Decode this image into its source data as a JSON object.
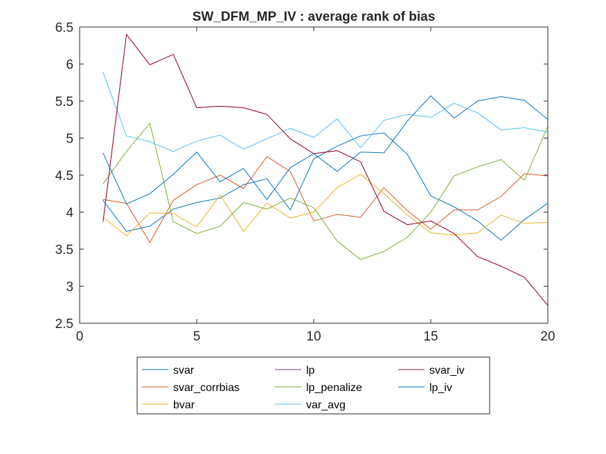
{
  "chart_data": {
    "type": "line",
    "title": "SW_DFM_MP_IV : average rank of bias",
    "xlabel": "",
    "ylabel": "",
    "xlim": [
      0,
      20
    ],
    "ylim": [
      2.5,
      6.5
    ],
    "xticks": [
      "0",
      "5",
      "10",
      "15",
      "20"
    ],
    "yticks": [
      "2.5",
      "3",
      "3.5",
      "4",
      "4.5",
      "5",
      "5.5",
      "6",
      "6.5"
    ],
    "grid": false,
    "legend_position": "bottom-center",
    "x": [
      1,
      2,
      3,
      4,
      5,
      6,
      7,
      8,
      9,
      10,
      11,
      12,
      13,
      14,
      15,
      16,
      17,
      18,
      19,
      20
    ],
    "series": [
      {
        "name": "svar",
        "color": "#0072bd",
        "values": [
          4.16,
          3.74,
          3.81,
          4.04,
          4.13,
          4.19,
          4.37,
          4.45,
          4.03,
          4.72,
          4.89,
          5.03,
          5.07,
          4.78,
          4.22,
          4.07,
          3.88,
          3.62,
          3.9,
          4.12
        ]
      },
      {
        "name": "svar_corrbias",
        "color": "#d95319",
        "values": [
          4.17,
          4.12,
          3.59,
          4.16,
          4.37,
          4.5,
          4.32,
          4.75,
          4.55,
          3.88,
          3.97,
          3.93,
          4.33,
          4.02,
          3.77,
          4.03,
          4.03,
          4.21,
          4.52,
          4.49
        ]
      },
      {
        "name": "bvar",
        "color": "#edb120",
        "values": [
          3.93,
          3.68,
          3.99,
          3.98,
          3.8,
          4.23,
          3.74,
          4.12,
          3.92,
          4.0,
          4.33,
          4.51,
          4.25,
          3.96,
          3.72,
          3.69,
          3.72,
          3.96,
          3.85,
          3.86
        ]
      },
      {
        "name": "lp",
        "color": "#7e2f8e",
        "values": [
          3.87,
          6.4,
          5.99,
          6.13,
          5.41,
          5.43,
          5.41,
          5.32,
          4.99,
          4.79,
          4.83,
          4.68,
          4.01,
          3.83,
          3.88,
          3.71,
          3.4,
          3.27,
          3.12,
          2.74
        ]
      },
      {
        "name": "lp_penalize",
        "color": "#77ac30",
        "values": [
          4.38,
          4.82,
          5.2,
          3.87,
          3.71,
          3.81,
          4.13,
          4.04,
          4.19,
          4.06,
          3.61,
          3.36,
          3.47,
          3.66,
          4.0,
          4.49,
          4.61,
          4.71,
          4.43,
          5.16
        ]
      },
      {
        "name": "var_avg",
        "color": "#4dbeee",
        "values": [
          5.89,
          5.03,
          4.95,
          4.82,
          4.96,
          5.04,
          4.85,
          4.99,
          5.13,
          5.01,
          5.26,
          4.87,
          5.24,
          5.32,
          5.28,
          5.47,
          5.34,
          5.11,
          5.14,
          5.08
        ]
      },
      {
        "name": "svar_iv",
        "color": "#a2142f",
        "values": [
          3.87,
          6.4,
          5.99,
          6.13,
          5.41,
          5.43,
          5.41,
          5.32,
          4.99,
          4.79,
          4.83,
          4.68,
          4.01,
          3.83,
          3.88,
          3.71,
          3.4,
          3.27,
          3.12,
          2.74
        ]
      },
      {
        "name": "lp_iv",
        "color": "#0072bd",
        "values": [
          4.8,
          4.11,
          4.25,
          4.51,
          4.81,
          4.41,
          4.59,
          4.17,
          4.6,
          4.79,
          4.55,
          4.81,
          4.8,
          5.23,
          5.57,
          5.27,
          5.5,
          5.56,
          5.51,
          5.25
        ]
      }
    ]
  }
}
